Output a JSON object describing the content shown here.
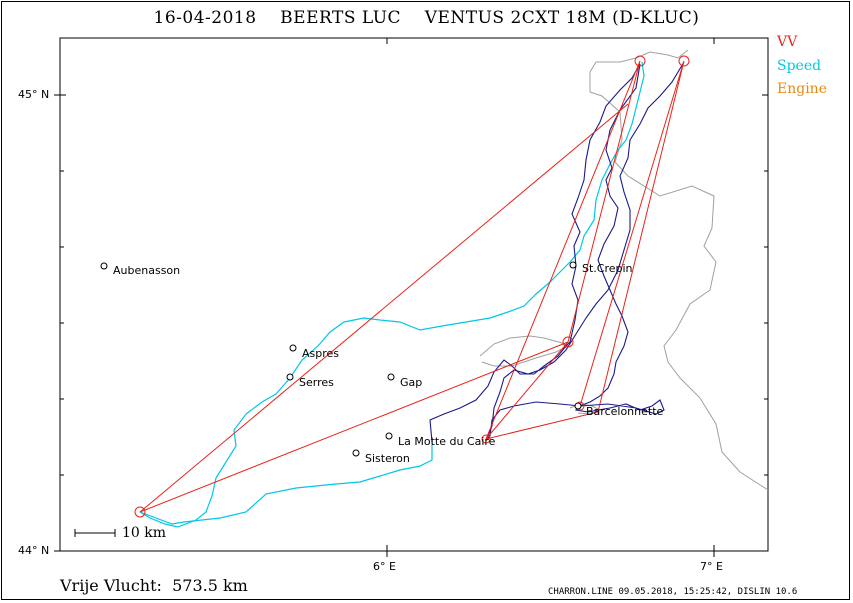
{
  "header": {
    "date": "16-04-2018",
    "pilot": "BEERTS LUC",
    "glider": "VENTUS 2CXT 18M (D-KLUC)"
  },
  "legend": [
    {
      "label": "VV",
      "color": "#e8231a"
    },
    {
      "label": "Speed",
      "color": "#00c8e6"
    },
    {
      "label": "Engine",
      "color": "#e88a10"
    }
  ],
  "axes": {
    "lat_ticks": [
      {
        "label": "45° N",
        "value": 45.0
      },
      {
        "label": "44° N",
        "value": 44.0
      }
    ],
    "lon_ticks": [
      {
        "label": "6° E",
        "value": 6.0
      },
      {
        "label": "7° E",
        "value": 7.0
      }
    ]
  },
  "towns": [
    {
      "name": "Aubenasson",
      "lon": 5.13,
      "lat": 44.625
    },
    {
      "name": "St.Crepin",
      "lon": 6.58,
      "lat": 44.628
    },
    {
      "name": "Aspres",
      "lon": 5.72,
      "lat": 44.445
    },
    {
      "name": "Serres",
      "lon": 5.71,
      "lat": 44.383
    },
    {
      "name": "Gap",
      "lon": 6.02,
      "lat": 44.38
    },
    {
      "name": "La Motte du Caire",
      "lon": 6.01,
      "lat": 44.25
    },
    {
      "name": "Barcelonnette",
      "lon": 6.63,
      "lat": 44.31
    },
    {
      "name": "Sisteron",
      "lon": 5.91,
      "lat": 44.215
    }
  ],
  "turnpoints_label": "VV",
  "scale": {
    "label": "10 km"
  },
  "distance": {
    "label": "Vrije Vlucht:",
    "value": "573.5 km"
  },
  "footer": "CHARRON.LINE 09.05.2018, 15:25:42, DISLIN 10.6"
}
